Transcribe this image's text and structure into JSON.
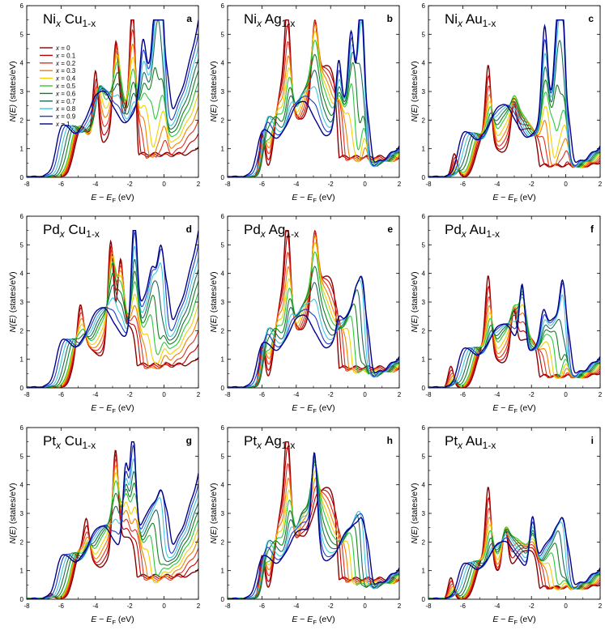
{
  "colors": [
    "#8b0000",
    "#c00000",
    "#e0301e",
    "#f08000",
    "#f0d000",
    "#2dc83c",
    "#108020",
    "#1e6b5a",
    "#3cc8dc",
    "#1e3cc8",
    "#00008b"
  ],
  "legend": {
    "var": "x",
    "entries": [
      "= 0",
      "= 0.1",
      "= 0.2",
      "= 0.3",
      "= 0.4",
      "= 0.5",
      "= 0.6",
      "= 0.7",
      "= 0.8",
      "= 0.9",
      "= 1"
    ]
  },
  "axes": {
    "ylabel_n": "N",
    "ylabel_e": "(E)",
    "ylabel_units": " (states/eV)",
    "xlabel_e": "E",
    "xlabel_minus": " − ",
    "xlabel_ef": "E",
    "xlabel_f": "F",
    "xlabel_units": " (eV)",
    "xticks": [
      "-8",
      "-6",
      "-4",
      "-2",
      "0",
      "2"
    ],
    "yticks": [
      "0",
      "1",
      "2",
      "3",
      "4",
      "5",
      "6"
    ]
  },
  "chart_data": [
    {
      "type": "line",
      "panel": "a",
      "title_el1": "Ni",
      "title_sub1": "x",
      "title_el2": "Cu",
      "title_sub2": "1-x",
      "xlim": [
        -8,
        2
      ],
      "ylim": [
        0,
        6
      ],
      "grid": false,
      "legend": "top-left",
      "series_x": [
        0,
        0.1,
        0.2,
        0.3,
        0.4,
        0.5,
        0.6,
        0.7,
        0.8,
        0.9,
        1
      ],
      "start_dos": [
        0.1,
        0.2,
        2.0,
        1.5,
        2.4,
        0.8
      ],
      "end_dos": [
        0.5,
        0.2,
        2.7,
        0.0,
        5.1,
        0.3
      ],
      "peaks": [
        [
          -3.8,
          3.7
        ],
        [
          -2.7,
          4.1
        ],
        [
          -1.8,
          5.3
        ],
        [
          -1.2,
          3.2
        ],
        [
          -0.4,
          3.4
        ],
        [
          -0.05,
          5.1
        ]
      ]
    },
    {
      "type": "line",
      "panel": "b",
      "title_el1": "Ni",
      "title_sub1": "x",
      "title_el2": "Ag",
      "title_sub2": "1-x",
      "xlim": [
        -8,
        2
      ],
      "ylim": [
        0,
        6
      ],
      "grid": false,
      "legend": "none",
      "series_x": [
        0,
        0.1,
        0.2,
        0.3,
        0.4,
        0.5,
        0.6,
        0.7,
        0.8,
        0.9,
        1
      ],
      "start_dos": [
        0.05,
        0.1,
        3.7,
        1.8,
        5.2,
        0.7
      ],
      "end_dos": [
        0.1,
        0.05,
        2.5,
        0.4,
        5.1,
        0.3
      ],
      "peaks": [
        [
          -5.8,
          3.7
        ],
        [
          -4.4,
          5.2
        ],
        [
          -2.9,
          4.6
        ],
        [
          -1.5,
          3.6
        ],
        [
          -0.7,
          3.8
        ],
        [
          -0.05,
          5.1
        ]
      ]
    },
    {
      "type": "line",
      "panel": "c",
      "title_el1": "Ni",
      "title_sub1": "x",
      "title_el2": "Au",
      "title_sub2": "1-x",
      "xlim": [
        -8,
        2
      ],
      "ylim": [
        0,
        6
      ],
      "grid": false,
      "legend": "none",
      "series_x": [
        0,
        0.1,
        0.2,
        0.3,
        0.4,
        0.5,
        0.6,
        0.7,
        0.8,
        0.9,
        1
      ],
      "start_dos": [
        0.05,
        0.1,
        1.6,
        1.5,
        3.6,
        0.4
      ],
      "end_dos": [
        0.1,
        0.1,
        2.4,
        0.7,
        5.1,
        0.3
      ],
      "peaks": [
        [
          -6.3,
          1.8
        ],
        [
          -4.4,
          3.6
        ],
        [
          -3.0,
          2.2
        ],
        [
          -1.2,
          4.4
        ],
        [
          -0.4,
          3.7
        ],
        [
          -0.05,
          5.1
        ]
      ]
    },
    {
      "type": "line",
      "panel": "d",
      "title_el1": "Pd",
      "title_sub1": "x",
      "title_el2": "Cu",
      "title_sub2": "1-x",
      "xlim": [
        -8,
        2
      ],
      "ylim": [
        0,
        6
      ],
      "grid": false,
      "legend": "none",
      "series_x": [
        0,
        0.1,
        0.2,
        0.3,
        0.4,
        0.5,
        0.6,
        0.7,
        0.8,
        0.9,
        1
      ],
      "start_dos": [
        0.1,
        0.2,
        2.0,
        1.5,
        2.4,
        0.8
      ],
      "end_dos": [
        0.5,
        0.3,
        2.5,
        0.6,
        4.8,
        0.3
      ],
      "peaks": [
        [
          -4.7,
          2.4
        ],
        [
          -3.0,
          4.8
        ],
        [
          -2.5,
          3.6
        ],
        [
          -1.7,
          5.3
        ],
        [
          -0.6,
          2.0
        ],
        [
          0.0,
          2.7
        ]
      ]
    },
    {
      "type": "line",
      "panel": "e",
      "title_el1": "Pd",
      "title_sub1": "x",
      "title_el2": "Ag",
      "title_sub2": "1-x",
      "xlim": [
        -8,
        2
      ],
      "ylim": [
        0,
        6
      ],
      "grid": false,
      "legend": "none",
      "series_x": [
        0,
        0.1,
        0.2,
        0.3,
        0.4,
        0.5,
        0.6,
        0.7,
        0.8,
        0.9,
        1
      ],
      "start_dos": [
        0.05,
        0.1,
        3.7,
        1.8,
        5.2,
        0.7
      ],
      "end_dos": [
        0.1,
        0.05,
        2.4,
        0.4,
        3.6,
        0.3
      ],
      "peaks": [
        [
          -5.8,
          3.7
        ],
        [
          -4.4,
          5.2
        ],
        [
          -2.9,
          4.6
        ],
        [
          -1.5,
          2.0
        ],
        [
          -0.4,
          2.1
        ],
        [
          0.0,
          2.7
        ]
      ]
    },
    {
      "type": "line",
      "panel": "f",
      "title_el1": "Pd",
      "title_sub1": "x",
      "title_el2": "Au",
      "title_sub2": "1-x",
      "xlim": [
        -8,
        2
      ],
      "ylim": [
        0,
        6
      ],
      "grid": false,
      "legend": "none",
      "series_x": [
        0,
        0.1,
        0.2,
        0.3,
        0.4,
        0.5,
        0.6,
        0.7,
        0.8,
        0.9,
        1
      ],
      "start_dos": [
        0.05,
        0.1,
        1.6,
        1.5,
        3.6,
        0.4
      ],
      "end_dos": [
        0.1,
        0.1,
        2.1,
        0.6,
        3.2,
        0.3
      ],
      "peaks": [
        [
          -6.5,
          1.7
        ],
        [
          -4.4,
          3.6
        ],
        [
          -3.0,
          2.4
        ],
        [
          -2.5,
          3.5
        ],
        [
          -1.2,
          2.0
        ],
        [
          0.0,
          2.8
        ]
      ]
    },
    {
      "type": "line",
      "panel": "g",
      "title_el1": "Pt",
      "title_sub1": "x",
      "title_el2": "Cu",
      "title_sub2": "1-x",
      "xlim": [
        -8,
        2
      ],
      "ylim": [
        0,
        6
      ],
      "grid": false,
      "legend": "none",
      "series_x": [
        0,
        0.1,
        0.2,
        0.3,
        0.4,
        0.5,
        0.6,
        0.7,
        0.8,
        0.9,
        1
      ],
      "start_dos": [
        0.1,
        0.2,
        2.0,
        1.5,
        2.4,
        0.8
      ],
      "end_dos": [
        0.4,
        0.3,
        2.3,
        0.8,
        4.5,
        0.3
      ],
      "peaks": [
        [
          -6.4,
          1.4
        ],
        [
          -4.4,
          2.4
        ],
        [
          -2.8,
          4.6
        ],
        [
          -2.2,
          4.4
        ],
        [
          -1.7,
          5.3
        ],
        [
          0.0,
          1.9
        ]
      ]
    },
    {
      "type": "line",
      "panel": "h",
      "title_el1": "Pt",
      "title_sub1": "x",
      "title_el2": "Ag",
      "title_sub2": "1-x",
      "xlim": [
        -8,
        2
      ],
      "ylim": [
        0,
        6
      ],
      "grid": false,
      "legend": "none",
      "series_x": [
        0,
        0.1,
        0.2,
        0.3,
        0.4,
        0.5,
        0.6,
        0.7,
        0.8,
        0.9,
        1
      ],
      "start_dos": [
        0.05,
        0.1,
        3.7,
        1.8,
        5.2,
        0.7
      ],
      "end_dos": [
        0.1,
        0.05,
        2.3,
        0.5,
        3.0,
        0.3
      ],
      "peaks": [
        [
          -5.8,
          3.7
        ],
        [
          -4.4,
          5.2
        ],
        [
          -3.7,
          2.4
        ],
        [
          -2.9,
          4.6
        ],
        [
          -0.7,
          1.3
        ],
        [
          0.0,
          1.8
        ]
      ]
    },
    {
      "type": "line",
      "panel": "i",
      "title_el1": "Pt",
      "title_sub1": "x",
      "title_el2": "Au",
      "title_sub2": "1-x",
      "xlim": [
        -8,
        2
      ],
      "ylim": [
        0,
        6
      ],
      "grid": false,
      "legend": "none",
      "series_x": [
        0,
        0.1,
        0.2,
        0.3,
        0.4,
        0.5,
        0.6,
        0.7,
        0.8,
        0.9,
        1
      ],
      "start_dos": [
        0.05,
        0.1,
        1.6,
        1.5,
        3.6,
        0.4
      ],
      "end_dos": [
        0.1,
        0.1,
        1.9,
        0.7,
        2.8,
        0.3
      ],
      "peaks": [
        [
          -6.5,
          1.7
        ],
        [
          -4.4,
          3.6
        ],
        [
          -3.5,
          2.5
        ],
        [
          -1.9,
          2.8
        ],
        [
          -0.4,
          1.4
        ],
        [
          0.0,
          1.9
        ]
      ]
    }
  ]
}
